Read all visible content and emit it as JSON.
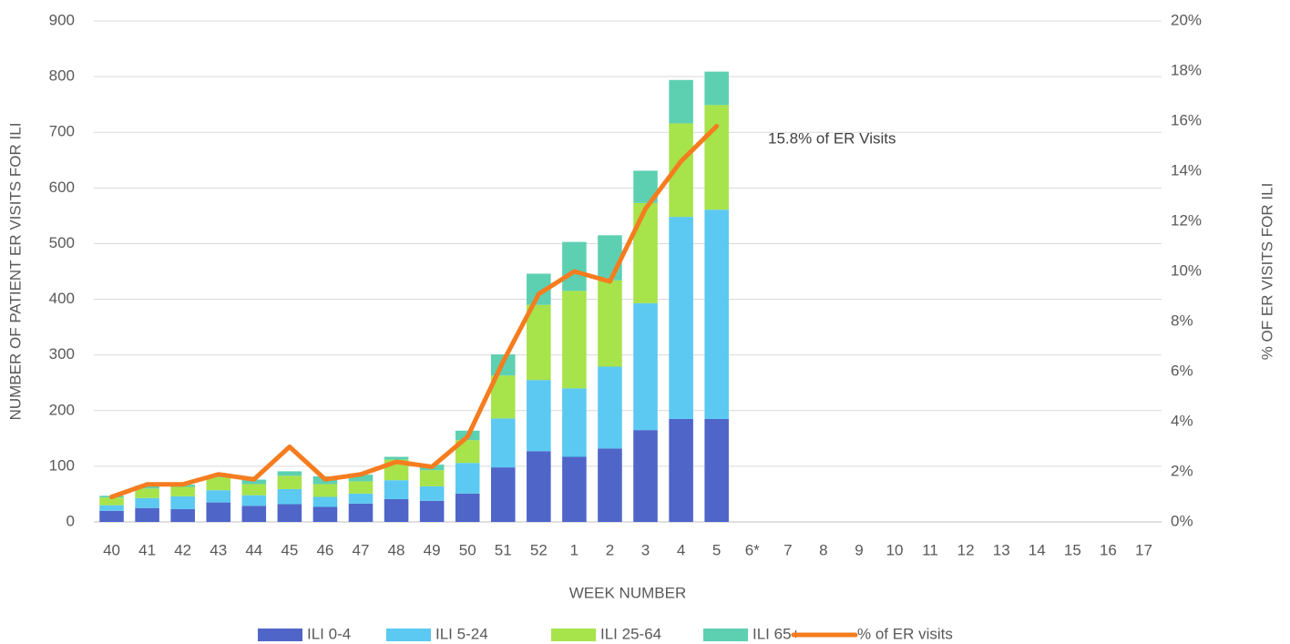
{
  "chart_data": {
    "type": "bar",
    "stacked": true,
    "x_label": "WEEK NUMBER",
    "y_label": "NUMBER OF PATIENT ER VISITS FOR ILI",
    "y2_label": "% OF ER VISITS FOR ILI",
    "annotation": "15.8% of ER Visits",
    "categories": [
      "40",
      "41",
      "42",
      "43",
      "44",
      "45",
      "46",
      "47",
      "48",
      "49",
      "50",
      "51",
      "52",
      "1",
      "2",
      "3",
      "4",
      "5",
      "6*",
      "7",
      "8",
      "9",
      "10",
      "11",
      "12",
      "13",
      "14",
      "15",
      "16",
      "17"
    ],
    "series": [
      {
        "name": "ILI 0-4",
        "color": "#4f65c8",
        "values": [
          20,
          25,
          23,
          35,
          29,
          32,
          27,
          33,
          41,
          38,
          51,
          98,
          127,
          117,
          132,
          165,
          185,
          185,
          null,
          null,
          null,
          null,
          null,
          null,
          null,
          null,
          null,
          null,
          null,
          null
        ]
      },
      {
        "name": "ILI 5-24",
        "color": "#5bc9f1",
        "values": [
          10,
          18,
          23,
          22,
          19,
          27,
          18,
          18,
          34,
          26,
          55,
          88,
          128,
          123,
          147,
          228,
          363,
          376,
          null,
          null,
          null,
          null,
          null,
          null,
          null,
          null,
          null,
          null,
          null,
          null
        ]
      },
      {
        "name": "ILI 25-64",
        "color": "#a7e34b",
        "values": [
          14,
          17,
          17,
          23,
          20,
          24,
          23,
          22,
          37,
          29,
          41,
          77,
          135,
          175,
          155,
          180,
          168,
          188,
          null,
          null,
          null,
          null,
          null,
          null,
          null,
          null,
          null,
          null,
          null,
          null
        ]
      },
      {
        "name": "ILI 65+",
        "color": "#5dd0b1",
        "values": [
          3,
          5,
          4,
          2,
          8,
          8,
          14,
          12,
          5,
          10,
          17,
          38,
          56,
          88,
          81,
          58,
          78,
          60,
          null,
          null,
          null,
          null,
          null,
          null,
          null,
          null,
          null,
          null,
          null,
          null
        ]
      },
      {
        "name": "% of ER visits",
        "type": "line",
        "axis": "y2",
        "color": "#f57c1f",
        "values": [
          1.0,
          1.5,
          1.5,
          1.9,
          1.7,
          3.0,
          1.7,
          1.9,
          2.4,
          2.2,
          3.4,
          6.4,
          9.1,
          10.0,
          9.6,
          12.5,
          14.4,
          15.8,
          null,
          null,
          null,
          null,
          null,
          null,
          null,
          null,
          null,
          null,
          null,
          null
        ]
      }
    ],
    "ylim": [
      0,
      900
    ],
    "yticks": [
      0,
      100,
      200,
      300,
      400,
      500,
      600,
      700,
      800,
      900
    ],
    "y2lim": [
      0,
      20
    ],
    "y2ticks": [
      {
        "value": 0,
        "label": "0%"
      },
      {
        "value": 2,
        "label": "2%"
      },
      {
        "value": 4,
        "label": "4%"
      },
      {
        "value": 6,
        "label": "6%"
      },
      {
        "value": 8,
        "label": "8%"
      },
      {
        "value": 10,
        "label": "10%"
      },
      {
        "value": 12,
        "label": "12%"
      },
      {
        "value": 14,
        "label": "14%"
      },
      {
        "value": 16,
        "label": "16%"
      },
      {
        "value": 18,
        "label": "18%"
      },
      {
        "value": 20,
        "label": "20%"
      }
    ],
    "grid": true,
    "legend": "bottom"
  }
}
